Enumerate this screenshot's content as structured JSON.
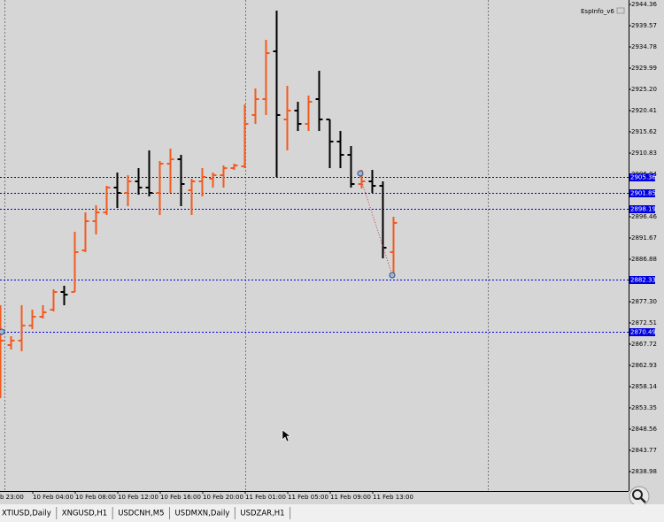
{
  "chart_data": {
    "type": "ohlc",
    "indicator_label": "EspInfo_v6",
    "categories": [
      "b 23:00",
      null,
      null,
      null,
      "10 Feb 04:00",
      null,
      null,
      null,
      "10 Feb 08:00",
      null,
      null,
      null,
      "10 Feb 12:00",
      null,
      null,
      null,
      "10 Feb 16:00",
      null,
      null,
      null,
      "10 Feb 20:00",
      null,
      null,
      null,
      "11 Feb 01:00",
      null,
      null,
      null,
      "11 Feb 05:00",
      null,
      null,
      null,
      "11 Feb 09:00",
      null,
      null,
      null,
      "11 Feb 13:00",
      null
    ],
    "open": [
      2857.53,
      2867.51,
      2868.51,
      2871.91,
      2873.9,
      2875.5,
      2879.49,
      2879.49,
      2888.87,
      2895.46,
      2897.45,
      2903.04,
      2901.84,
      2904.44,
      2903.04,
      2901.84,
      2908.43,
      2909.43,
      2902.44,
      2904.44,
      2905.04,
      2905.84,
      2907.43,
      2907.83,
      2919.41,
      2923.0,
      2933.78,
      2918.41,
      2920.41,
      2917.41,
      2923.0,
      2918.41,
      2913.42,
      2910.43,
      2903.84,
      2904.44,
      2903.44,
      2888.47
    ],
    "high": [
      2876.5,
      2869.51,
      2876.5,
      2875.5,
      2876.5,
      2880.09,
      2880.89,
      2893.07,
      2897.45,
      2899.05,
      2903.44,
      2906.44,
      2905.84,
      2907.43,
      2911.43,
      2909.03,
      2911.83,
      2910.43,
      2905.04,
      2907.43,
      2906.44,
      2908.03,
      2908.43,
      2921.8,
      2925.4,
      2936.38,
      2942.96,
      2926.0,
      2922.4,
      2923.8,
      2929.39,
      2918.41,
      2915.82,
      2912.42,
      2907.03,
      2907.03,
      2904.44,
      2896.46
    ],
    "low": [
      2855.54,
      2866.51,
      2866.12,
      2871.11,
      2873.5,
      2875.1,
      2876.5,
      2879.49,
      2888.47,
      2892.47,
      2896.85,
      2898.45,
      2898.85,
      2901.45,
      2901.05,
      2896.85,
      2901.84,
      2898.85,
      2896.85,
      2901.05,
      2903.04,
      2903.04,
      2907.03,
      2907.43,
      2917.41,
      2919.41,
      2905.44,
      2911.43,
      2915.82,
      2915.82,
      2915.82,
      2907.43,
      2907.43,
      2903.04,
      2902.84,
      2901.84,
      2887.07,
      2883.08
    ],
    "close": [
      2868.51,
      2868.51,
      2871.91,
      2873.9,
      2874.9,
      2879.49,
      2878.89,
      2888.47,
      2895.46,
      2897.45,
      2903.04,
      2901.84,
      2904.44,
      2903.04,
      2901.84,
      2908.43,
      2909.43,
      2903.84,
      2904.44,
      2905.44,
      2905.84,
      2907.43,
      2908.03,
      2917.41,
      2923.0,
      2933.38,
      2919.41,
      2920.41,
      2917.41,
      2922.4,
      2918.41,
      2913.42,
      2910.43,
      2903.84,
      2904.44,
      2903.44,
      2889.47,
      2895.07
    ],
    "up_color": "#f25a1d",
    "down_color": "#000000",
    "ylim": [
      2834.58,
      2945.36
    ],
    "yticks": [
      2944.36,
      2939.57,
      2934.78,
      2929.99,
      {
        "value": 2925.2,
        "label": "2925.20"
      },
      2920.41,
      2915.62,
      2910.83,
      2906.04,
      2896.46,
      2891.67,
      2886.88,
      {
        "value": 2877.3,
        "label": "2877.30"
      },
      2872.51,
      2867.72,
      2862.93,
      2858.14,
      2853.35,
      2848.56,
      2843.77,
      2838.98
    ],
    "levels": [
      2905.36,
      2901.85,
      2898.19,
      2882.33,
      2870.49
    ],
    "level_color": "#0000e0"
  },
  "tabs": [
    "XTIUSD,Daily",
    "XNGUSD,H1",
    "USDCNH,M5",
    "USDMXN,Daily",
    "USDZAR,H1"
  ]
}
